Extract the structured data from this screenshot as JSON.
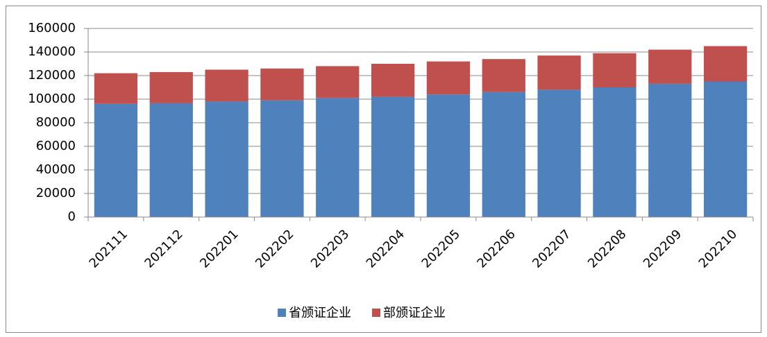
{
  "chart_data": {
    "type": "stacked_bar",
    "categories": [
      "202111",
      "202112",
      "202201",
      "202202",
      "202203",
      "202204",
      "202205",
      "202206",
      "202207",
      "202208",
      "202209",
      "202210"
    ],
    "series": [
      {
        "name": "省颁证企业",
        "color": "#4f81bd",
        "values": [
          96000,
          96500,
          98000,
          99000,
          101000,
          102000,
          104000,
          106000,
          108000,
          110000,
          113000,
          115000
        ]
      },
      {
        "name": "部颁证企业",
        "color": "#c0504d",
        "values": [
          26000,
          26500,
          27000,
          27000,
          27000,
          28000,
          28000,
          28000,
          29000,
          29000,
          29000,
          30000
        ]
      }
    ],
    "ylim": [
      0,
      160000
    ],
    "yticks": [
      0,
      20000,
      40000,
      60000,
      80000,
      100000,
      120000,
      140000,
      160000
    ],
    "grid": true,
    "legend": "bottom"
  }
}
